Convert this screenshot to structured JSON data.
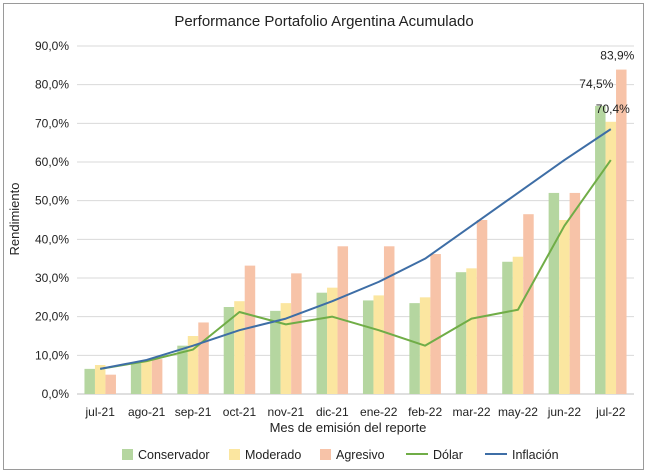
{
  "chart_data": {
    "type": "bar",
    "title": "Performance Portafolio Argentina Acumulado",
    "xlabel": "Mes de emisión del reporte",
    "ylabel": "Rendimiento",
    "categories": [
      "jul-21",
      "ago-21",
      "sep-21",
      "oct-21",
      "nov-21",
      "dic-21",
      "ene-22",
      "feb-22",
      "mar-22",
      "may-22",
      "jun-22",
      "jul-22"
    ],
    "ylim": [
      0,
      90
    ],
    "yticks": [
      "0,0%",
      "10,0%",
      "20,0%",
      "30,0%",
      "40,0%",
      "50,0%",
      "60,0%",
      "70,0%",
      "80,0%",
      "90,0%"
    ],
    "grid": true,
    "legend_position": "bottom",
    "bar_series": [
      {
        "name": "Conservador",
        "color": "#b5d6a0",
        "values": [
          6.5,
          8.0,
          12.5,
          22.5,
          21.5,
          26.2,
          24.2,
          23.5,
          31.5,
          34.2,
          52.0,
          74.5
        ]
      },
      {
        "name": "Moderado",
        "color": "#fbe6a0",
        "values": [
          7.5,
          8.5,
          15.0,
          24.0,
          23.5,
          27.5,
          25.5,
          25.0,
          32.5,
          35.5,
          45.0,
          70.4
        ]
      },
      {
        "name": "Agresivo",
        "color": "#f7c3a8",
        "values": [
          5.0,
          9.0,
          18.5,
          33.2,
          31.2,
          38.2,
          38.2,
          36.2,
          45.0,
          46.5,
          52.0,
          83.9
        ]
      }
    ],
    "line_series": [
      {
        "name": "Dólar",
        "color": "#70ad47",
        "values": [
          6.5,
          8.5,
          11.5,
          21.2,
          18.0,
          20.0,
          16.5,
          12.5,
          19.5,
          21.8,
          43.5,
          60.5
        ]
      },
      {
        "name": "Inflación",
        "color": "#3e6ea6",
        "values": [
          6.5,
          8.8,
          12.5,
          16.5,
          19.5,
          24.0,
          29.0,
          35.0,
          43.5,
          52.0,
          60.5,
          68.5
        ]
      }
    ],
    "data_labels": [
      "74,5%",
      "70,4%",
      "83,9%"
    ]
  }
}
